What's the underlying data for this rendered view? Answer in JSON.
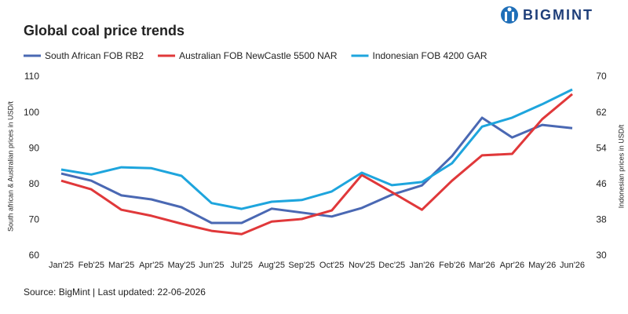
{
  "brand": "BIGMINT",
  "chart_data": {
    "type": "line",
    "title": "Global coal price trends",
    "ylabel": "South african & Australian prices in USD/t",
    "y2label": "Indonesian  prices in USD/t",
    "source": "Source: BigMint | Last updated: 22-06-2026",
    "categories": [
      "Jan'25",
      "Feb'25",
      "Mar'25",
      "Apr'25",
      "May'25",
      "Jun'25",
      "Jul'25",
      "Aug'25",
      "Sep'25",
      "Oct'25",
      "Nov'25",
      "Dec'25",
      "Jan'26",
      "Feb'26",
      "Mar'26",
      "Apr'26",
      "May'26",
      "Jun'26"
    ],
    "ylim": [
      60,
      110
    ],
    "yticks": [
      60,
      70,
      80,
      90,
      100,
      110
    ],
    "y2lim": [
      30,
      70
    ],
    "y2ticks": [
      30,
      38,
      46,
      54,
      62,
      70
    ],
    "grid": false,
    "legend": "top",
    "series": [
      {
        "name": "South African FOB RB2",
        "color": "#4a68b3",
        "values": [
          83.0,
          81.0,
          76.9,
          75.8,
          73.6,
          69.2,
          69.2,
          73.2,
          72.1,
          71.0,
          73.4,
          77.1,
          79.7,
          87.9,
          98.6,
          93.1,
          96.6,
          95.7
        ]
      },
      {
        "name": "Australian FOB NewCastle 5500 NAR",
        "color": "#e0383a",
        "values": [
          81.0,
          78.6,
          72.9,
          71.2,
          69.0,
          67.0,
          66.1,
          69.6,
          70.3,
          72.7,
          82.6,
          77.8,
          72.9,
          81.0,
          88.1,
          88.5,
          98.2,
          105.2
        ]
      },
      {
        "name": "Indonesian FOB 4200 GAR",
        "color": "#1ea5dd",
        "axis": "y2",
        "values": [
          49.3,
          48.2,
          49.8,
          49.6,
          47.9,
          41.8,
          40.5,
          42.1,
          42.5,
          44.4,
          48.6,
          45.8,
          46.5,
          50.7,
          58.9,
          60.9,
          63.9,
          67.2
        ]
      }
    ]
  }
}
